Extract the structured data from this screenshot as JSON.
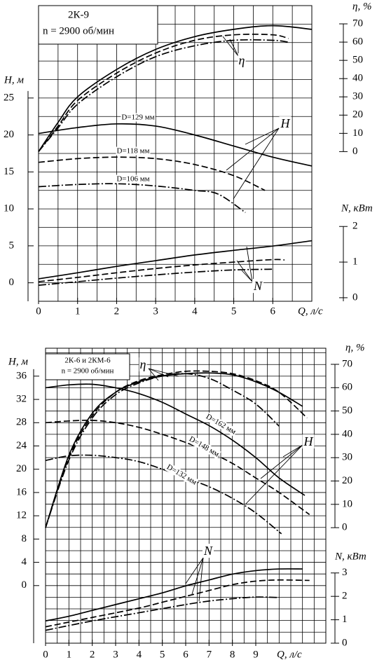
{
  "chart_data": [
    {
      "type": "line",
      "title": "2К-9",
      "subtitle": "n = 2900 об/мин",
      "xlabel": "Q, л/с",
      "ylabel": "H, м",
      "y2label": "η, %",
      "y3label": "N, кВт",
      "xlim": [
        0,
        7
      ],
      "xticks": [
        0,
        1,
        2,
        3,
        4,
        5,
        6
      ],
      "xgrid": [
        0,
        0.5,
        1,
        1.5,
        2,
        2.5,
        3,
        3.5,
        4,
        4.5,
        5,
        5.5,
        6,
        6.5,
        7
      ],
      "ylim": [
        -2.5,
        37.5
      ],
      "yticks": [
        0,
        5,
        10,
        15,
        20,
        25
      ],
      "ygrid": [
        -2.5,
        0,
        2.5,
        5,
        7.5,
        10,
        12.5,
        15,
        17.5,
        20,
        22.5,
        25,
        27.5,
        30,
        32.5,
        35,
        37.5
      ],
      "y2lim": [
        -82,
        80
      ],
      "y2ticks": [
        0,
        10,
        20,
        30,
        40,
        50,
        60,
        70
      ],
      "y3lim": [
        -0.1,
        8.2
      ],
      "y3ticks": [
        0,
        1,
        2
      ],
      "color": "#000000",
      "series": [
        {
          "axis": "y",
          "dash": "solid",
          "x": [
            0,
            1,
            2,
            3,
            4,
            5,
            6,
            7
          ],
          "values": [
            20.2,
            21,
            21.5,
            21.2,
            20,
            18.5,
            17,
            15.8
          ]
        },
        {
          "axis": "y",
          "dash": "dashed",
          "x": [
            0,
            1,
            2,
            3,
            4,
            5,
            5.8
          ],
          "values": [
            16.3,
            16.8,
            17,
            16.8,
            16,
            14.5,
            12.5
          ]
        },
        {
          "axis": "y",
          "dash": "dashdot",
          "x": [
            0,
            1,
            2,
            3,
            4,
            4.6,
            5.3
          ],
          "values": [
            13,
            13.3,
            13.4,
            13.1,
            12.5,
            12,
            9.5
          ]
        },
        {
          "axis": "y2",
          "dash": "solid",
          "x": [
            0,
            0.5,
            1,
            2,
            3,
            4,
            5,
            6,
            7
          ],
          "values": [
            0,
            16,
            30,
            45,
            56,
            63,
            67,
            69,
            67
          ]
        },
        {
          "axis": "y2",
          "dash": "dashed",
          "x": [
            0,
            0.5,
            1,
            2,
            3,
            4,
            5,
            6,
            6.4
          ],
          "values": [
            0,
            14,
            28,
            43,
            54,
            61,
            64,
            64,
            62
          ]
        },
        {
          "axis": "y2",
          "dash": "dashdot",
          "x": [
            0,
            0.5,
            1,
            2,
            3,
            4,
            5,
            6,
            6.4
          ],
          "values": [
            0,
            13,
            26,
            41,
            52,
            58,
            61,
            61,
            60
          ]
        },
        {
          "axis": "y3",
          "dash": "solid",
          "x": [
            0,
            1,
            2,
            3,
            4,
            5,
            6,
            7
          ],
          "values": [
            0.53,
            0.7,
            0.88,
            1.04,
            1.2,
            1.33,
            1.45,
            1.6
          ]
        },
        {
          "axis": "y3",
          "dash": "dashed",
          "x": [
            0,
            1,
            2,
            3,
            4,
            5,
            6,
            6.3
          ],
          "values": [
            0.45,
            0.57,
            0.7,
            0.82,
            0.92,
            1.0,
            1.07,
            1.06
          ]
        },
        {
          "axis": "y3",
          "dash": "dashdot",
          "x": [
            0,
            1,
            2,
            3,
            4,
            5,
            6
          ],
          "values": [
            0.35,
            0.45,
            0.55,
            0.64,
            0.72,
            0.78,
            0.8
          ]
        }
      ],
      "annotations": [
        "D=129 мм",
        "D=118 мм",
        "D=106 мм",
        "η",
        "H",
        "N"
      ]
    },
    {
      "type": "line",
      "title": "2К-6 и 2КМ-6",
      "subtitle": "n = 2900 об/мин",
      "xlabel": "Q, л/с",
      "ylabel": "H, м",
      "y2label": "η, %",
      "y3label": "N, кВт",
      "xlim": [
        0,
        12
      ],
      "xticks": [
        0,
        1,
        2,
        3,
        4,
        5,
        6,
        7,
        8,
        9
      ],
      "xgrid": [
        0,
        0.5,
        1,
        1.5,
        2,
        2.5,
        3,
        3.5,
        4,
        4.5,
        5,
        5.5,
        6,
        6.5,
        7,
        7.5,
        8,
        8.5,
        9,
        9.5,
        10,
        10.5,
        11,
        11.5,
        12
      ],
      "ylim": [
        -9.9,
        40.8
      ],
      "yticks": [
        0,
        4,
        8,
        12,
        16,
        20,
        24,
        28,
        32,
        36
      ],
      "ygrid": [
        -8,
        -6,
        -4,
        -2,
        0,
        2,
        4,
        6,
        8,
        10,
        12,
        14,
        16,
        18,
        20,
        22,
        24,
        26,
        28,
        30,
        32,
        34,
        36,
        38,
        40
      ],
      "y2lim": [
        -49.5,
        76.9
      ],
      "y2ticks": [
        0,
        10,
        20,
        30,
        40,
        50,
        60,
        70
      ],
      "y3lim": [
        0,
        12.6
      ],
      "y3ticks": [
        0,
        1,
        2,
        3
      ],
      "color": "#000000",
      "series": [
        {
          "axis": "y",
          "dash": "solid",
          "x": [
            0,
            1,
            2,
            3,
            4,
            5,
            6,
            7,
            8,
            9,
            10,
            11.1
          ],
          "values": [
            34,
            34.5,
            34.6,
            34,
            33,
            31.5,
            29.5,
            27.5,
            25,
            22,
            18.5,
            15.5
          ]
        },
        {
          "axis": "y",
          "dash": "dashed",
          "x": [
            0,
            1,
            2,
            3,
            4,
            5,
            6,
            7,
            8,
            9,
            10,
            11.3
          ],
          "values": [
            28,
            28.3,
            28.4,
            28,
            27.2,
            26,
            24.6,
            23,
            21,
            18.5,
            16,
            12.2
          ]
        },
        {
          "axis": "y",
          "dash": "dashdot",
          "x": [
            0,
            1,
            2,
            3,
            4,
            5,
            6,
            7,
            8,
            9,
            10.1
          ],
          "values": [
            21.5,
            22.3,
            22.4,
            22,
            21.3,
            20,
            18.5,
            17,
            15,
            12.5,
            8.9
          ]
        },
        {
          "axis": "y2",
          "dash": "solid",
          "x": [
            0,
            1,
            2,
            3,
            4,
            5,
            6,
            7,
            8,
            9,
            10,
            11
          ],
          "values": [
            0,
            31,
            49,
            58,
            62.5,
            65,
            66,
            66.3,
            65.5,
            62.5,
            58,
            52
          ]
        },
        {
          "axis": "y2",
          "dash": "dashed",
          "x": [
            0,
            1,
            2,
            3,
            4,
            5,
            6,
            7,
            8,
            9,
            10,
            11.2
          ],
          "values": [
            0,
            30,
            48,
            58,
            63,
            65.5,
            67,
            67,
            66,
            63,
            58,
            47
          ]
        },
        {
          "axis": "y2",
          "dash": "dashdot",
          "x": [
            0,
            1,
            2,
            3,
            4,
            5,
            6,
            7,
            8,
            9,
            10
          ],
          "values": [
            0,
            29,
            47,
            57,
            62,
            65,
            66,
            64,
            59,
            53,
            43.5
          ]
        },
        {
          "axis": "y3",
          "dash": "solid",
          "x": [
            0,
            1,
            2,
            3,
            4,
            5,
            6,
            7,
            8,
            9,
            10,
            11
          ],
          "values": [
            0.95,
            1.15,
            1.4,
            1.65,
            1.9,
            2.15,
            2.45,
            2.7,
            2.95,
            3.1,
            3.17,
            3.17
          ]
        },
        {
          "axis": "y3",
          "dash": "dashed",
          "x": [
            0,
            2,
            4,
            5,
            6,
            7,
            8,
            9,
            10,
            11.3
          ],
          "values": [
            0.7,
            1.1,
            1.5,
            1.75,
            2.0,
            2.25,
            2.5,
            2.65,
            2.7,
            2.68
          ]
        },
        {
          "axis": "y3",
          "dash": "dashdot",
          "x": [
            0,
            2,
            4,
            6,
            7,
            8,
            9,
            10
          ],
          "values": [
            0.55,
            0.95,
            1.3,
            1.65,
            1.8,
            1.9,
            1.97,
            1.95
          ]
        }
      ],
      "annotations": [
        "D=162 мм",
        "D=148 мм",
        "D=132 мм",
        "η",
        "H",
        "N"
      ]
    }
  ]
}
